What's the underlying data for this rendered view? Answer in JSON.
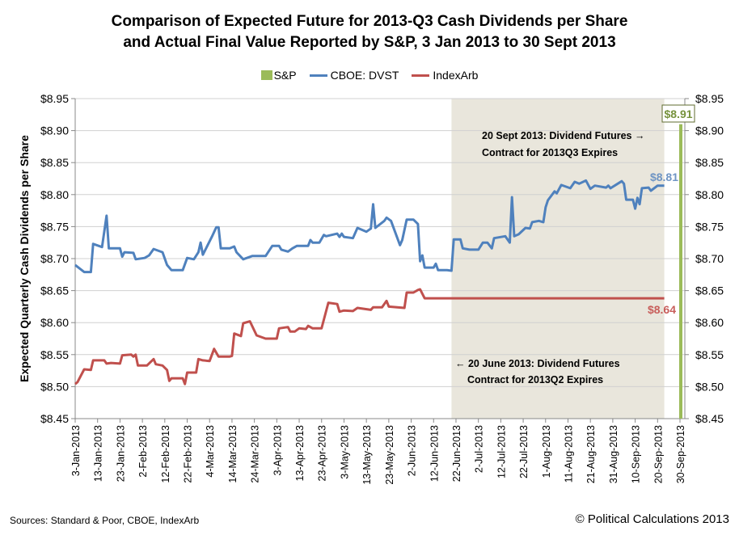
{
  "chart_data": {
    "type": "line",
    "title_line1": "Comparison of Expected Future for 2013-Q3 Cash Dividends per Share",
    "title_line2": "and Actual Final Value Reported by S&P, 3 Jan 2013 to 30 Sept 2013",
    "ylabel": "Expected Quarterly Cash Dividends per Share",
    "xlim": [
      "2013-01-03",
      "2013-10-02"
    ],
    "ylim": [
      8.45,
      8.95
    ],
    "yticks": [
      "$8.45",
      "$8.50",
      "$8.55",
      "$8.60",
      "$8.65",
      "$8.70",
      "$8.75",
      "$8.80",
      "$8.85",
      "$8.90",
      "$8.95"
    ],
    "ytick_values": [
      8.45,
      8.5,
      8.55,
      8.6,
      8.65,
      8.7,
      8.75,
      8.8,
      8.85,
      8.9,
      8.95
    ],
    "xticks": [
      "3-Jan-2013",
      "13-Jan-2013",
      "23-Jan-2013",
      "2-Feb-2013",
      "12-Feb-2013",
      "22-Feb-2013",
      "4-Mar-2013",
      "14-Mar-2013",
      "24-Mar-2013",
      "3-Apr-2013",
      "13-Apr-2013",
      "23-Apr-2013",
      "3-May-2013",
      "13-May-2013",
      "23-May-2013",
      "2-Jun-2013",
      "12-Jun-2013",
      "22-Jun-2013",
      "2-Jul-2013",
      "12-Jul-2013",
      "22-Jul-2013",
      "1-Aug-2013",
      "11-Aug-2013",
      "21-Aug-2013",
      "31-Aug-2013",
      "10-Sep-2013",
      "20-Sep-2013",
      "30-Sep-2013"
    ],
    "grid": true,
    "legend_placement": "top",
    "shaded_region": {
      "from": "2013-06-20",
      "to": "2013-09-23",
      "color": "#e9e6dc"
    },
    "series": [
      {
        "name": "S&P",
        "kind": "bar",
        "color": "#9bbb59",
        "points": [
          [
            "2013-09-30",
            8.91
          ]
        ],
        "label": "$8.91"
      },
      {
        "name": "CBOE: DVST",
        "kind": "line",
        "color": "#4f81bd",
        "label": "$8.81",
        "points": [
          [
            "2013-01-03",
            8.69
          ],
          [
            "2013-01-07",
            8.679
          ],
          [
            "2013-01-10",
            8.679
          ],
          [
            "2013-01-11",
            8.723
          ],
          [
            "2013-01-15",
            8.718
          ],
          [
            "2013-01-17",
            8.767
          ],
          [
            "2013-01-18",
            8.716
          ],
          [
            "2013-01-23",
            8.716
          ],
          [
            "2013-01-24",
            8.703
          ],
          [
            "2013-01-25",
            8.71
          ],
          [
            "2013-01-29",
            8.709
          ],
          [
            "2013-01-30",
            8.699
          ],
          [
            "2013-02-03",
            8.701
          ],
          [
            "2013-02-05",
            8.705
          ],
          [
            "2013-02-07",
            8.715
          ],
          [
            "2013-02-11",
            8.71
          ],
          [
            "2013-02-13",
            8.69
          ],
          [
            "2013-02-15",
            8.682
          ],
          [
            "2013-02-20",
            8.682
          ],
          [
            "2013-02-22",
            8.701
          ],
          [
            "2013-02-25",
            8.699
          ],
          [
            "2013-02-27",
            8.71
          ],
          [
            "2013-02-28",
            8.725
          ],
          [
            "2013-03-01",
            8.706
          ],
          [
            "2013-03-05",
            8.734
          ],
          [
            "2013-03-07",
            8.749
          ],
          [
            "2013-03-08",
            8.749
          ],
          [
            "2013-03-09",
            8.716
          ],
          [
            "2013-03-13",
            8.716
          ],
          [
            "2013-03-15",
            8.719
          ],
          [
            "2013-03-16",
            8.71
          ],
          [
            "2013-03-19",
            8.699
          ],
          [
            "2013-03-23",
            8.704
          ],
          [
            "2013-03-29",
            8.704
          ],
          [
            "2013-04-01",
            8.72
          ],
          [
            "2013-04-04",
            8.72
          ],
          [
            "2013-04-05",
            8.714
          ],
          [
            "2013-04-08",
            8.711
          ],
          [
            "2013-04-10",
            8.716
          ],
          [
            "2013-04-12",
            8.72
          ],
          [
            "2013-04-17",
            8.72
          ],
          [
            "2013-04-18",
            8.729
          ],
          [
            "2013-04-19",
            8.725
          ],
          [
            "2013-04-22",
            8.725
          ],
          [
            "2013-04-24",
            8.737
          ],
          [
            "2013-04-25",
            8.735
          ],
          [
            "2013-04-30",
            8.739
          ],
          [
            "2013-05-01",
            8.734
          ],
          [
            "2013-05-02",
            8.739
          ],
          [
            "2013-05-03",
            8.734
          ],
          [
            "2013-05-07",
            8.732
          ],
          [
            "2013-05-09",
            8.748
          ],
          [
            "2013-05-13",
            8.742
          ],
          [
            "2013-05-15",
            8.747
          ],
          [
            "2013-05-16",
            8.785
          ],
          [
            "2013-05-17",
            8.748
          ],
          [
            "2013-05-21",
            8.759
          ],
          [
            "2013-05-22",
            8.764
          ],
          [
            "2013-05-24",
            8.759
          ],
          [
            "2013-05-28",
            8.721
          ],
          [
            "2013-05-29",
            8.729
          ],
          [
            "2013-05-31",
            8.761
          ],
          [
            "2013-06-03",
            8.761
          ],
          [
            "2013-06-05",
            8.754
          ],
          [
            "2013-06-06",
            8.696
          ],
          [
            "2013-06-07",
            8.705
          ],
          [
            "2013-06-08",
            8.686
          ],
          [
            "2013-06-12",
            8.686
          ],
          [
            "2013-06-13",
            8.692
          ],
          [
            "2013-06-14",
            8.682
          ],
          [
            "2013-06-18",
            8.682
          ],
          [
            "2013-06-20",
            8.681
          ],
          [
            "2013-06-21",
            8.73
          ],
          [
            "2013-06-24",
            8.73
          ],
          [
            "2013-06-25",
            8.716
          ],
          [
            "2013-06-28",
            8.714
          ],
          [
            "2013-07-02",
            8.714
          ],
          [
            "2013-07-04",
            8.725
          ],
          [
            "2013-07-06",
            8.725
          ],
          [
            "2013-07-08",
            8.716
          ],
          [
            "2013-07-09",
            8.732
          ],
          [
            "2013-07-14",
            8.735
          ],
          [
            "2013-07-16",
            8.725
          ],
          [
            "2013-07-17",
            8.796
          ],
          [
            "2013-07-18",
            8.735
          ],
          [
            "2013-07-20",
            8.738
          ],
          [
            "2013-07-23",
            8.748
          ],
          [
            "2013-07-25",
            8.747
          ],
          [
            "2013-07-26",
            8.757
          ],
          [
            "2013-07-29",
            8.759
          ],
          [
            "2013-07-31",
            8.757
          ],
          [
            "2013-08-01",
            8.78
          ],
          [
            "2013-08-02",
            8.791
          ],
          [
            "2013-08-05",
            8.805
          ],
          [
            "2013-08-06",
            8.802
          ],
          [
            "2013-08-08",
            8.815
          ],
          [
            "2013-08-12",
            8.81
          ],
          [
            "2013-08-14",
            8.82
          ],
          [
            "2013-08-16",
            8.817
          ],
          [
            "2013-08-19",
            8.822
          ],
          [
            "2013-08-21",
            8.809
          ],
          [
            "2013-08-23",
            8.814
          ],
          [
            "2013-08-28",
            8.811
          ],
          [
            "2013-08-29",
            8.814
          ],
          [
            "2013-08-30",
            8.81
          ],
          [
            "2013-09-04",
            8.821
          ],
          [
            "2013-09-05",
            8.817
          ],
          [
            "2013-09-06",
            8.792
          ],
          [
            "2013-09-09",
            8.792
          ],
          [
            "2013-09-10",
            8.778
          ],
          [
            "2013-09-11",
            8.795
          ],
          [
            "2013-09-12",
            8.785
          ],
          [
            "2013-09-13",
            8.81
          ],
          [
            "2013-09-16",
            8.811
          ],
          [
            "2013-09-17",
            8.806
          ],
          [
            "2013-09-20",
            8.814
          ],
          [
            "2013-09-23",
            8.814
          ]
        ]
      },
      {
        "name": "IndexArb",
        "kind": "line",
        "color": "#c0504d",
        "label": "$8.64",
        "points": [
          [
            "2013-01-03",
            8.504
          ],
          [
            "2013-01-04",
            8.507
          ],
          [
            "2013-01-07",
            8.527
          ],
          [
            "2013-01-10",
            8.526
          ],
          [
            "2013-01-11",
            8.541
          ],
          [
            "2013-01-16",
            8.541
          ],
          [
            "2013-01-17",
            8.536
          ],
          [
            "2013-01-19",
            8.537
          ],
          [
            "2013-01-23",
            8.536
          ],
          [
            "2013-01-24",
            8.549
          ],
          [
            "2013-01-28",
            8.55
          ],
          [
            "2013-01-29",
            8.547
          ],
          [
            "2013-01-30",
            8.55
          ],
          [
            "2013-01-31",
            8.533
          ],
          [
            "2013-02-04",
            8.533
          ],
          [
            "2013-02-07",
            8.543
          ],
          [
            "2013-02-08",
            8.535
          ],
          [
            "2013-02-11",
            8.533
          ],
          [
            "2013-02-13",
            8.526
          ],
          [
            "2013-02-14",
            8.509
          ],
          [
            "2013-02-15",
            8.513
          ],
          [
            "2013-02-20",
            8.513
          ],
          [
            "2013-02-21",
            8.504
          ],
          [
            "2013-02-22",
            8.522
          ],
          [
            "2013-02-26",
            8.522
          ],
          [
            "2013-02-27",
            8.543
          ],
          [
            "2013-03-01",
            8.541
          ],
          [
            "2013-03-04",
            8.54
          ],
          [
            "2013-03-06",
            8.559
          ],
          [
            "2013-03-08",
            8.547
          ],
          [
            "2013-03-13",
            8.547
          ],
          [
            "2013-03-14",
            8.548
          ],
          [
            "2013-03-15",
            8.583
          ],
          [
            "2013-03-18",
            8.579
          ],
          [
            "2013-03-19",
            8.599
          ],
          [
            "2013-03-22",
            8.602
          ],
          [
            "2013-03-25",
            8.58
          ],
          [
            "2013-03-29",
            8.575
          ],
          [
            "2013-04-03",
            8.575
          ],
          [
            "2013-04-04",
            8.591
          ],
          [
            "2013-04-08",
            8.593
          ],
          [
            "2013-04-09",
            8.586
          ],
          [
            "2013-04-11",
            8.586
          ],
          [
            "2013-04-13",
            8.591
          ],
          [
            "2013-04-16",
            8.59
          ],
          [
            "2013-04-17",
            8.595
          ],
          [
            "2013-04-19",
            8.591
          ],
          [
            "2013-04-23",
            8.591
          ],
          [
            "2013-04-26",
            8.631
          ],
          [
            "2013-04-30",
            8.629
          ],
          [
            "2013-05-01",
            8.617
          ],
          [
            "2013-05-03",
            8.619
          ],
          [
            "2013-05-07",
            8.618
          ],
          [
            "2013-05-09",
            8.623
          ],
          [
            "2013-05-15",
            8.62
          ],
          [
            "2013-05-16",
            8.624
          ],
          [
            "2013-05-20",
            8.624
          ],
          [
            "2013-05-22",
            8.634
          ],
          [
            "2013-05-23",
            8.625
          ],
          [
            "2013-05-30",
            8.623
          ],
          [
            "2013-05-31",
            8.647
          ],
          [
            "2013-06-03",
            8.647
          ],
          [
            "2013-06-05",
            8.651
          ],
          [
            "2013-06-06",
            8.652
          ],
          [
            "2013-06-08",
            8.638
          ],
          [
            "2013-09-23",
            8.638
          ]
        ]
      }
    ],
    "annotations": [
      {
        "line1": "20 Sept 2013: Dividend Futures →",
        "line2": "Contract for 2013Q3 Expires"
      },
      {
        "line1": "← 20 June 2013: Dividend Futures",
        "line2": "Contract for 2013Q2 Expires"
      }
    ]
  },
  "footer": {
    "sources": "Sources: Standard & Poor, CBOE, IndexArb",
    "copyright": "© Political Calculations 2013"
  }
}
